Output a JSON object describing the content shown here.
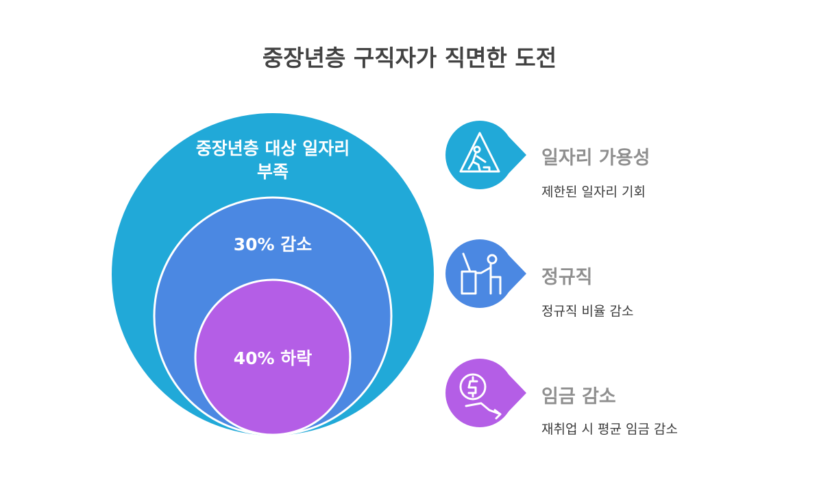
{
  "title": "중장년층 구직자가 직면한 도전",
  "layers": [
    {
      "label": "중장년층 대상 일자리 부족",
      "color": "#21a9d8"
    },
    {
      "label": "30% 감소",
      "color": "#4b88e2"
    },
    {
      "label": "40% 하락",
      "color": "#b45ee6"
    }
  ],
  "items": [
    {
      "title": "일자리 가용성",
      "description": "제한된 일자리 기회",
      "icon": "construction-warning-icon",
      "color": "#21a9d8"
    },
    {
      "title": "정규직",
      "description": "정규직 비율 감소",
      "icon": "person-at-desk-icon",
      "color": "#4b88e2"
    },
    {
      "title": "임금 감소",
      "description": "재취업 시 평균 임금 감소",
      "icon": "dollar-down-arrow-icon",
      "color": "#b45ee6"
    }
  ]
}
